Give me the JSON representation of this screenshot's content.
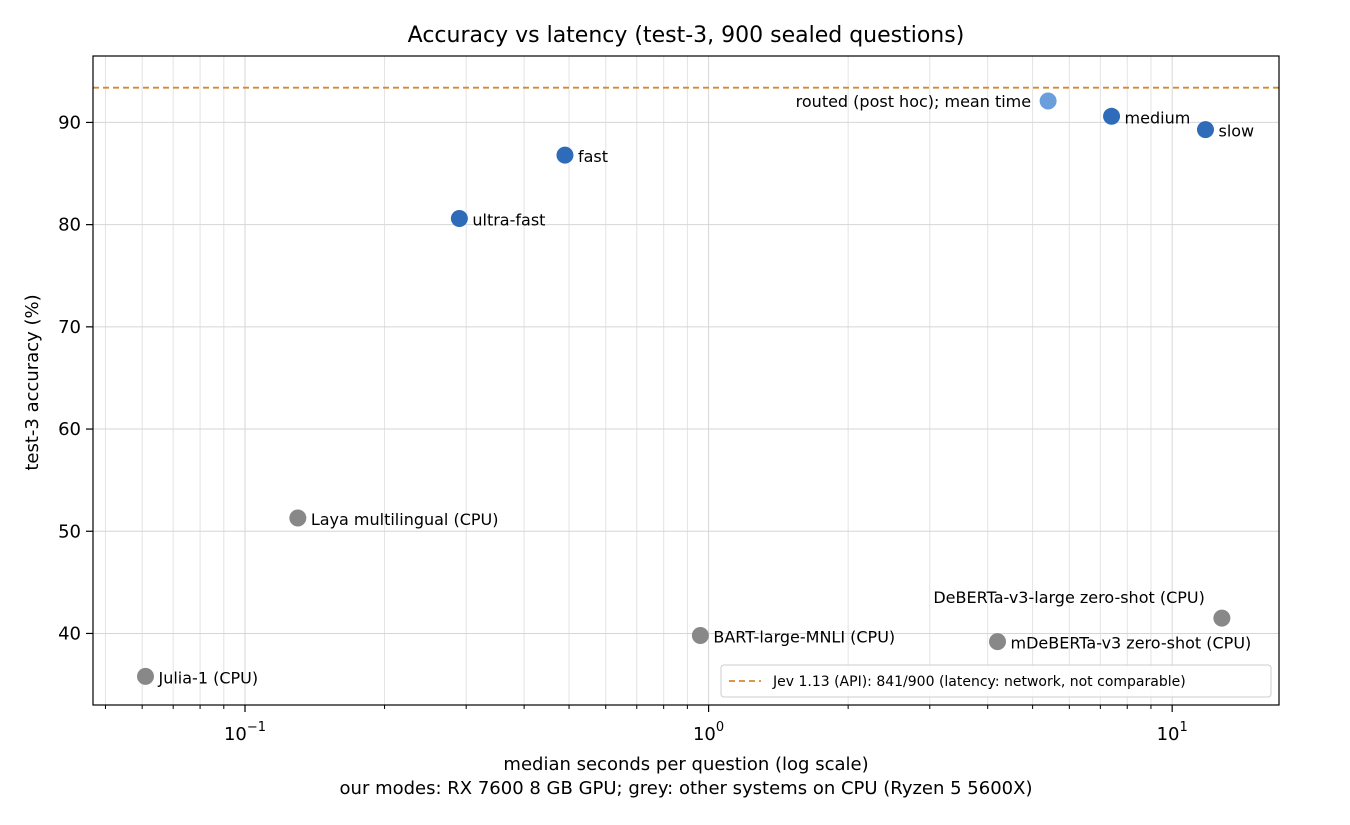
{
  "chart_data": {
    "type": "scatter",
    "title": "Accuracy vs latency (test-3, 900 sealed questions)",
    "xlabel": "median seconds per question (log scale)",
    "xlabel_line2": "our modes: RX 7600 8 GB GPU; grey: other systems on CPU (Ryzen 5 5600X)",
    "ylabel": "test-3 accuracy (%)",
    "x_scale": "log",
    "xlim": [
      0.047,
      17
    ],
    "ylim": [
      33,
      96.5
    ],
    "x_ticks": [
      {
        "value": 0.1,
        "base": "10",
        "exp": "−1"
      },
      {
        "value": 1,
        "base": "10",
        "exp": "0"
      },
      {
        "value": 10,
        "base": "10",
        "exp": "1"
      }
    ],
    "y_ticks": [
      40,
      50,
      60,
      70,
      80,
      90
    ],
    "grid": true,
    "reference_line": {
      "y": 93.4,
      "style": "dashed",
      "color": "#d4892f",
      "legend_label": "Jev 1.13 (API): 841/900 (latency: network, not comparable)"
    },
    "legend_position": "lower right",
    "colors": {
      "ours": "#2e6bb8",
      "routed": "#6a9fdb",
      "other": "#888888",
      "reference": "#d4892f"
    },
    "points": [
      {
        "label": "ultra-fast",
        "x": 0.29,
        "y": 80.6,
        "group": "ours",
        "label_side": "right"
      },
      {
        "label": "fast",
        "x": 0.49,
        "y": 86.8,
        "group": "ours",
        "label_side": "right"
      },
      {
        "label": "medium",
        "x": 7.4,
        "y": 90.6,
        "group": "ours",
        "label_side": "right"
      },
      {
        "label": "slow",
        "x": 11.8,
        "y": 89.3,
        "group": "ours",
        "label_side": "right"
      },
      {
        "label": "routed (post hoc); mean time",
        "x": 5.4,
        "y": 92.1,
        "group": "routed",
        "label_side": "left"
      },
      {
        "label": "Julia-1 (CPU)",
        "x": 0.061,
        "y": 35.8,
        "group": "other",
        "label_side": "right"
      },
      {
        "label": "Laya multilingual (CPU)",
        "x": 0.13,
        "y": 51.3,
        "group": "other",
        "label_side": "right"
      },
      {
        "label": "BART-large-MNLI (CPU)",
        "x": 0.96,
        "y": 39.8,
        "group": "other",
        "label_side": "right"
      },
      {
        "label": "mDeBERTa-v3 zero-shot (CPU)",
        "x": 4.2,
        "y": 39.2,
        "group": "other",
        "label_side": "right"
      },
      {
        "label": "DeBERTa-v3-large zero-shot (CPU)",
        "x": 12.8,
        "y": 41.5,
        "group": "other",
        "label_side": "above-left"
      }
    ]
  }
}
